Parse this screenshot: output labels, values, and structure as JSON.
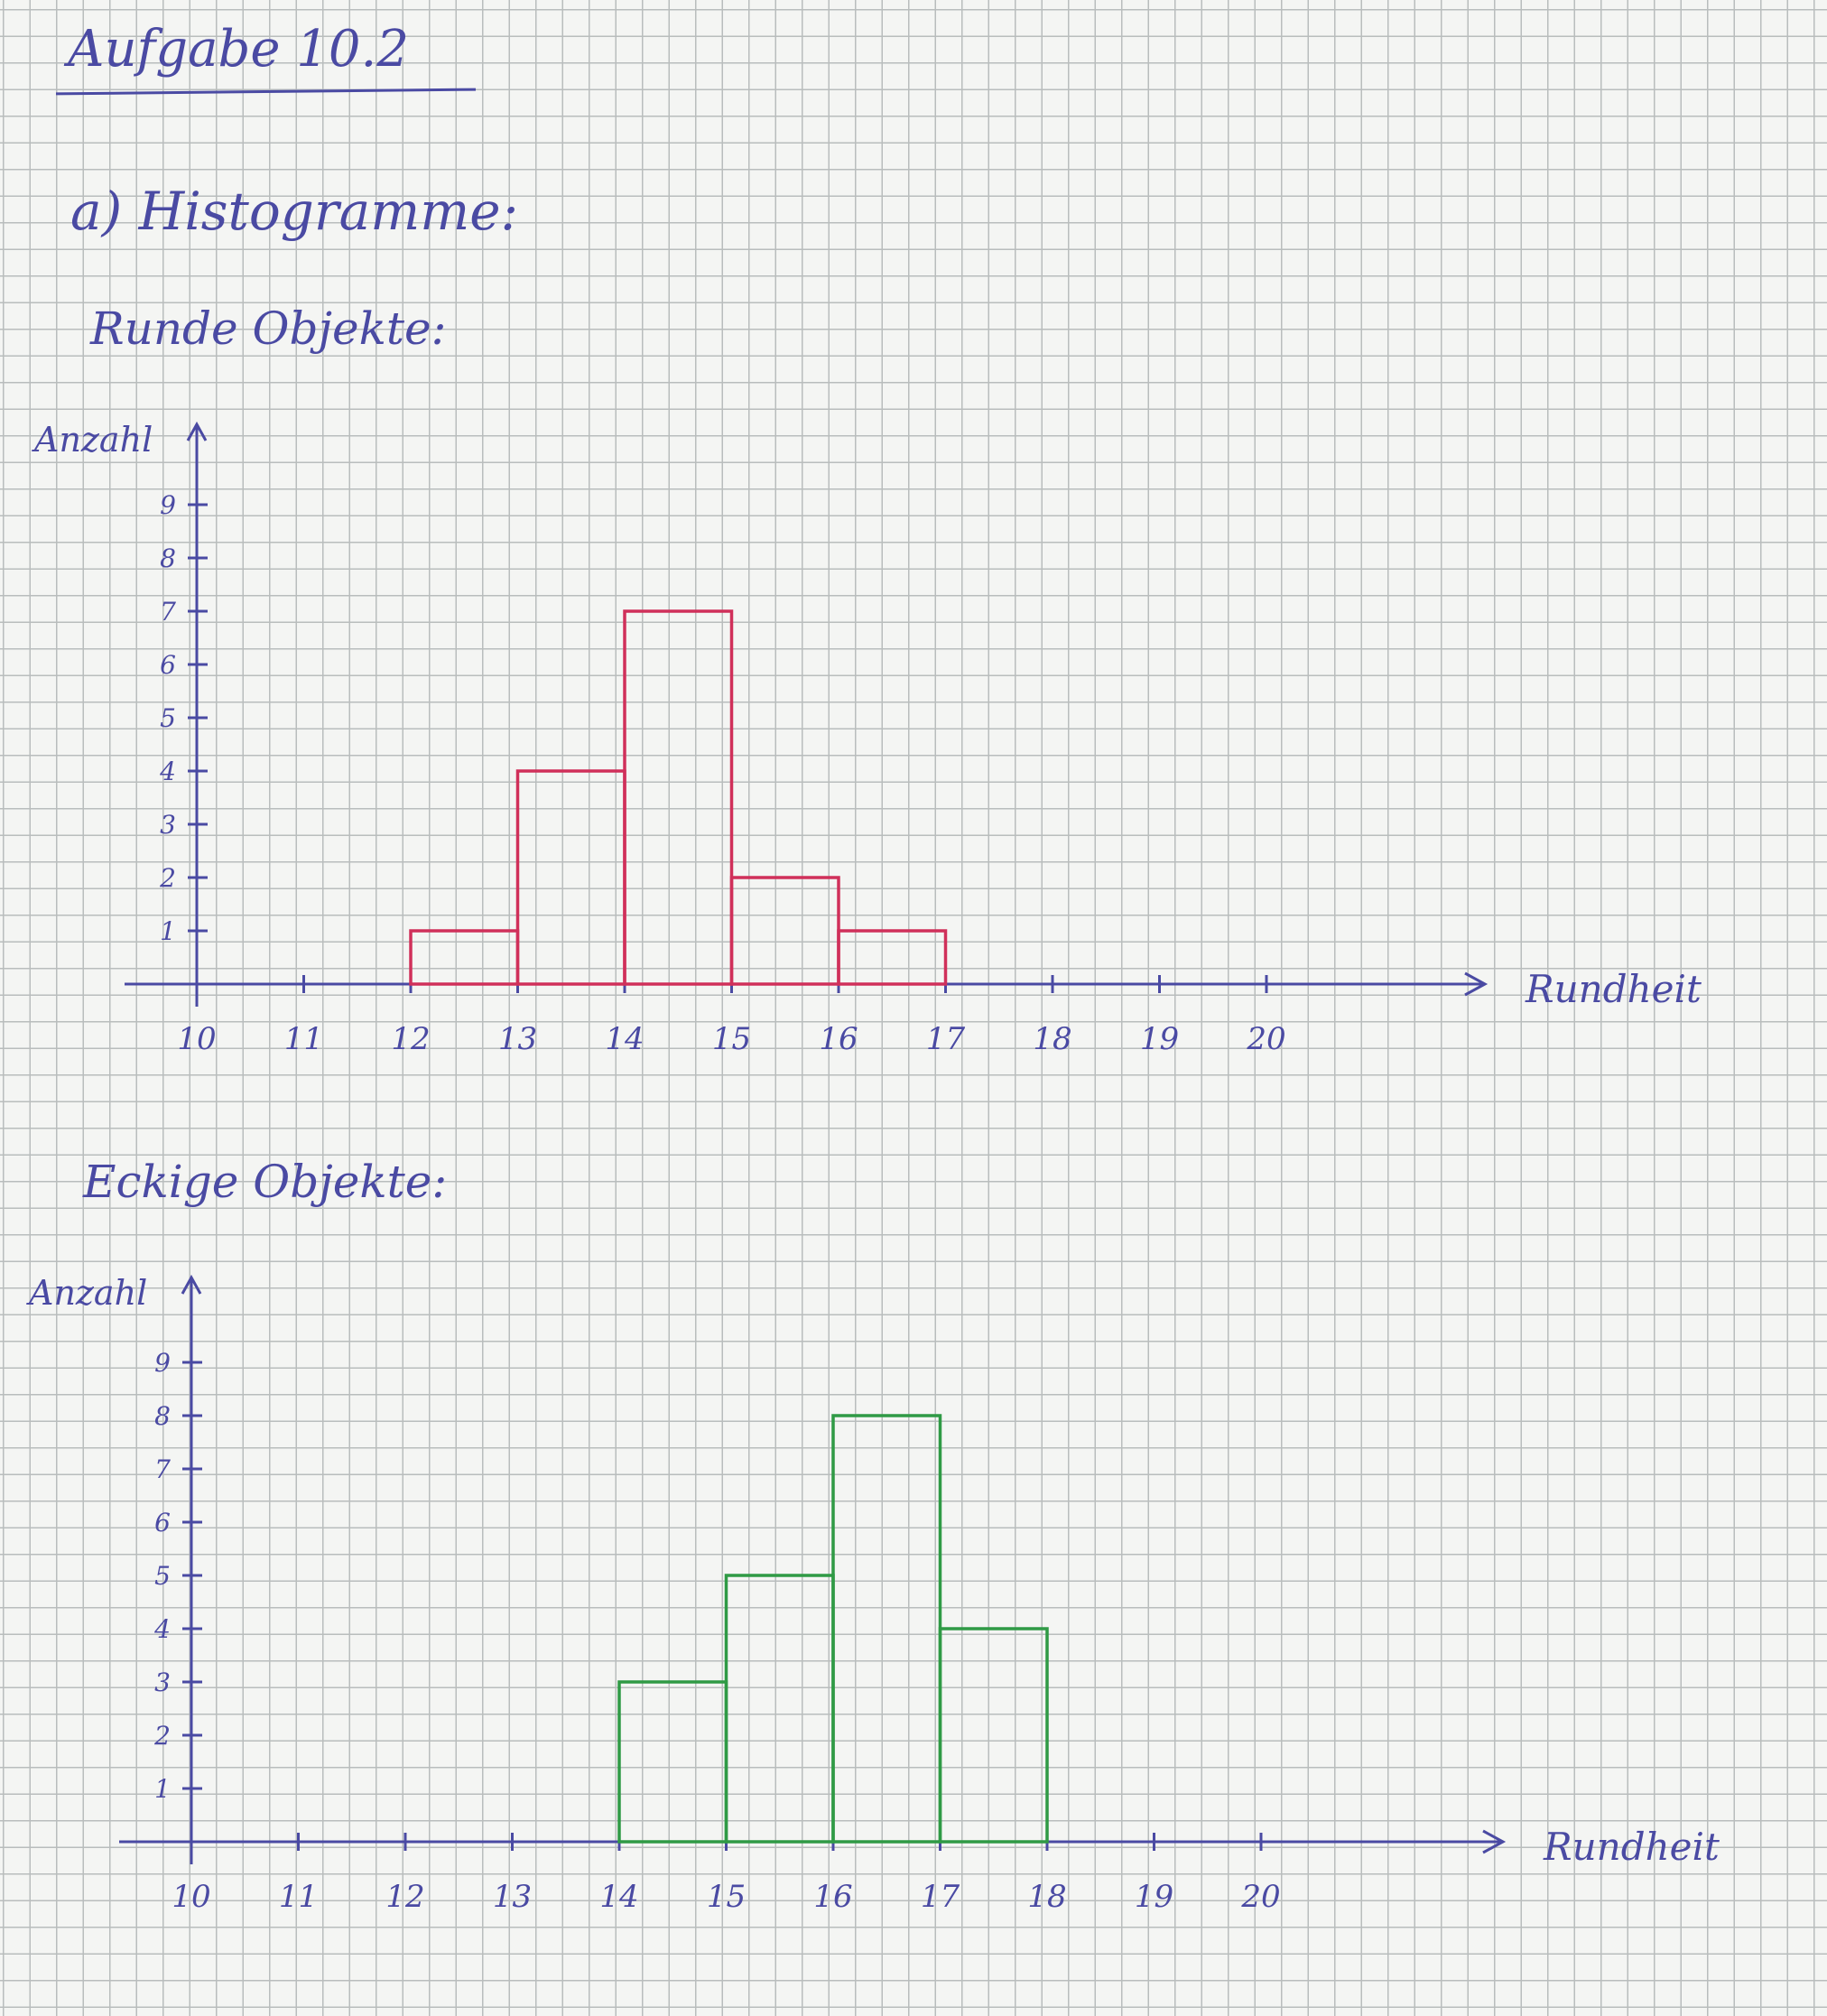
{
  "header": {
    "title": "Aufgabe 10.2",
    "subtitle": "a) Histogramme:"
  },
  "sections": [
    {
      "label": "Runde Objekte:"
    },
    {
      "label": "Eckige Objekte:"
    }
  ],
  "colors": {
    "ink": "#4a4aa3",
    "red": "#d0305a",
    "green": "#2f9a45"
  },
  "chart_data": [
    {
      "type": "bar",
      "ylabel": "Anzahl",
      "xlabel": "Rundheit",
      "x_ticks": [
        10,
        11,
        12,
        13,
        14,
        15,
        16,
        17,
        18,
        19,
        20
      ],
      "y_ticks": [
        1,
        2,
        3,
        4,
        5,
        6,
        7,
        8,
        9
      ],
      "bins": [
        {
          "start": 12,
          "end": 13,
          "count": 1
        },
        {
          "start": 13,
          "end": 14,
          "count": 4
        },
        {
          "start": 14,
          "end": 15,
          "count": 7
        },
        {
          "start": 15,
          "end": 16,
          "count": 2
        },
        {
          "start": 16,
          "end": 17,
          "count": 1
        }
      ],
      "color": "#d0305a"
    },
    {
      "type": "bar",
      "ylabel": "Anzahl",
      "xlabel": "Rundheit",
      "x_ticks": [
        10,
        11,
        12,
        13,
        14,
        15,
        16,
        17,
        18,
        19,
        20
      ],
      "y_ticks": [
        1,
        2,
        3,
        4,
        5,
        6,
        7,
        8,
        9
      ],
      "bins": [
        {
          "start": 14,
          "end": 15,
          "count": 3
        },
        {
          "start": 15,
          "end": 16,
          "count": 5
        },
        {
          "start": 16,
          "end": 17,
          "count": 8
        },
        {
          "start": 17,
          "end": 18,
          "count": 4
        }
      ],
      "color": "#2f9a45"
    }
  ]
}
